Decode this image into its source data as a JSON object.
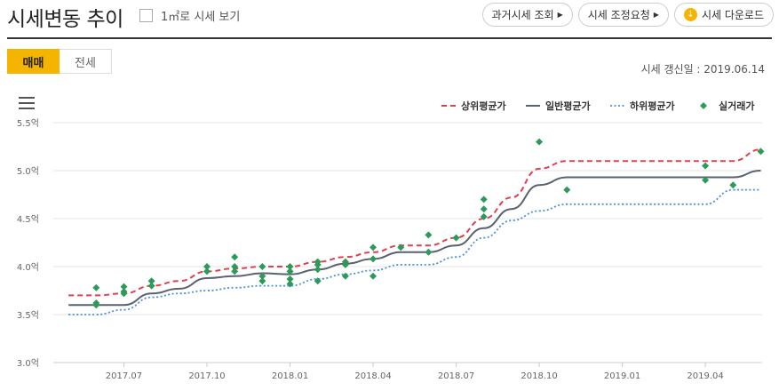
{
  "header": {
    "title": "시세변동 추이",
    "area_toggle_label": "1㎡로 시세 보기",
    "buttons": {
      "past_price": "과거시세 조회",
      "price_adjust": "시세 조정요청",
      "download": "시세 다운로드"
    }
  },
  "tabs": [
    {
      "label": "매매",
      "active": true
    },
    {
      "label": "전세",
      "active": false
    }
  ],
  "updated_text": "시세 갱신일 : 2019.06.14",
  "colors": {
    "upper": "#e0404e",
    "general": "#5a6270",
    "lower": "#4a90d9",
    "actual": "#2e9a5a",
    "accent": "#f5b400"
  },
  "icons": {
    "menu": "hamburger-icon",
    "download": "download-icon",
    "arrow": "triangle-right-icon"
  },
  "chart_data": {
    "type": "line",
    "ylim": [
      3.0,
      5.5
    ],
    "yticks": [
      "5.5억",
      "5.0억",
      "4.5억",
      "4.0억",
      "3.5억",
      "3.0억"
    ],
    "ytick_values": [
      5.5,
      5.0,
      4.5,
      4.0,
      3.5,
      3.0
    ],
    "xticks": [
      "2017.07",
      "2017.10",
      "2018.01",
      "2018.04",
      "2018.07",
      "2018.10",
      "2019.01",
      "2019.04"
    ],
    "grid": true,
    "legend_position": "top-right",
    "x": [
      "2017.05",
      "2017.06",
      "2017.07",
      "2017.08",
      "2017.09",
      "2017.10",
      "2017.11",
      "2017.12",
      "2018.01",
      "2018.02",
      "2018.03",
      "2018.04",
      "2018.05",
      "2018.06",
      "2018.07",
      "2018.08",
      "2018.09",
      "2018.10",
      "2018.11",
      "2018.12",
      "2019.01",
      "2019.02",
      "2019.03",
      "2019.04",
      "2019.05",
      "2019.06"
    ],
    "series": [
      {
        "name": "상위평균가",
        "style": "dashed",
        "values": [
          3.7,
          3.7,
          3.72,
          3.8,
          3.85,
          3.95,
          3.98,
          4.0,
          4.0,
          4.05,
          4.1,
          4.15,
          4.22,
          4.22,
          4.3,
          4.5,
          4.72,
          5.02,
          5.1,
          5.1,
          5.1,
          5.1,
          5.1,
          5.1,
          5.1,
          5.22
        ]
      },
      {
        "name": "일반평균가",
        "style": "solid",
        "values": [
          3.6,
          3.6,
          3.6,
          3.72,
          3.77,
          3.88,
          3.9,
          3.93,
          3.92,
          3.97,
          4.03,
          4.08,
          4.15,
          4.15,
          4.22,
          4.4,
          4.6,
          4.85,
          4.93,
          4.93,
          4.93,
          4.93,
          4.93,
          4.93,
          4.93,
          5.0
        ]
      },
      {
        "name": "하위평균가",
        "style": "dotted",
        "values": [
          3.5,
          3.5,
          3.55,
          3.68,
          3.72,
          3.75,
          3.78,
          3.8,
          3.8,
          3.87,
          3.92,
          3.96,
          4.02,
          4.02,
          4.1,
          4.3,
          4.48,
          4.58,
          4.65,
          4.65,
          4.65,
          4.65,
          4.65,
          4.65,
          4.8,
          4.8
        ]
      },
      {
        "name": "실거래가",
        "style": "points",
        "points": [
          [
            "2017.06",
            3.78
          ],
          [
            "2017.06",
            3.62
          ],
          [
            "2017.06",
            3.6
          ],
          [
            "2017.07",
            3.79
          ],
          [
            "2017.07",
            3.74
          ],
          [
            "2017.07",
            3.72
          ],
          [
            "2017.08",
            3.85
          ],
          [
            "2017.08",
            3.8
          ],
          [
            "2017.10",
            4.0
          ],
          [
            "2017.10",
            3.95
          ],
          [
            "2017.11",
            4.1
          ],
          [
            "2017.11",
            4.0
          ],
          [
            "2017.11",
            3.95
          ],
          [
            "2017.12",
            4.0
          ],
          [
            "2017.12",
            3.9
          ],
          [
            "2017.12",
            3.85
          ],
          [
            "2018.01",
            4.0
          ],
          [
            "2018.01",
            3.95
          ],
          [
            "2018.01",
            3.87
          ],
          [
            "2018.01",
            3.82
          ],
          [
            "2018.02",
            4.05
          ],
          [
            "2018.02",
            4.02
          ],
          [
            "2018.02",
            3.97
          ],
          [
            "2018.02",
            3.85
          ],
          [
            "2018.03",
            4.05
          ],
          [
            "2018.03",
            4.02
          ],
          [
            "2018.03",
            3.9
          ],
          [
            "2018.04",
            4.2
          ],
          [
            "2018.04",
            4.08
          ],
          [
            "2018.04",
            3.9
          ],
          [
            "2018.05",
            4.2
          ],
          [
            "2018.06",
            4.33
          ],
          [
            "2018.06",
            4.15
          ],
          [
            "2018.07",
            4.3
          ],
          [
            "2018.08",
            4.7
          ],
          [
            "2018.08",
            4.6
          ],
          [
            "2018.08",
            4.52
          ],
          [
            "2018.10",
            5.3
          ],
          [
            "2018.11",
            4.8
          ],
          [
            "2019.04",
            5.05
          ],
          [
            "2019.04",
            4.9
          ],
          [
            "2019.05",
            4.85
          ],
          [
            "2019.06",
            5.2
          ]
        ]
      }
    ]
  }
}
